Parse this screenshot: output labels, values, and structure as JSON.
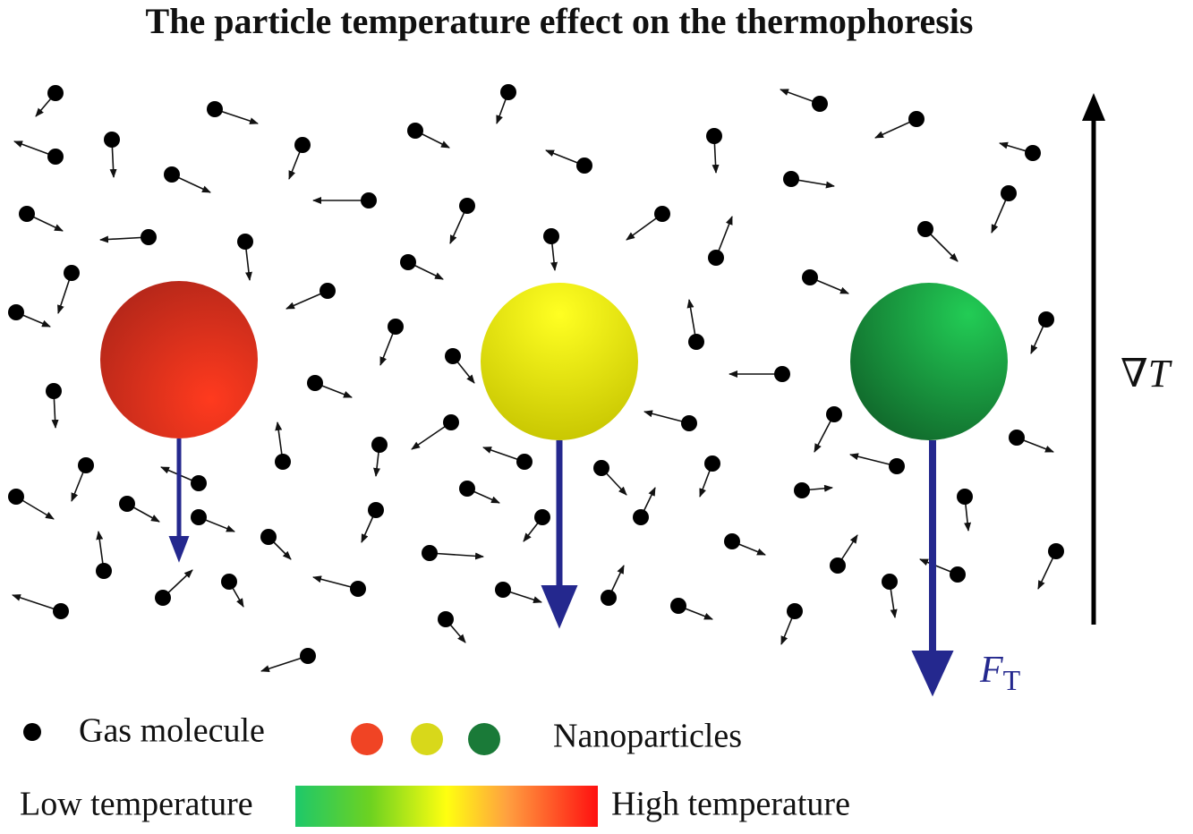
{
  "header": {
    "title": "The particle temperature effect on the thermophoresis"
  },
  "diagram": {
    "gradient_label": "∇T",
    "force_label": {
      "symbol": "F",
      "subscript": "T"
    }
  },
  "legend": {
    "gas_molecule": "Gas molecule",
    "nanoparticles": "Nanoparticles",
    "low_temperature": "Low temperature",
    "high_temperature": "High temperature"
  }
}
